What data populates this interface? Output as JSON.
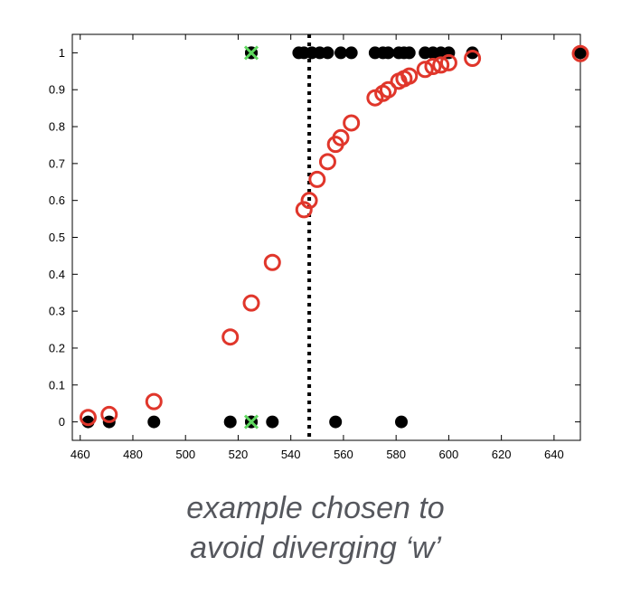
{
  "chart_data": {
    "type": "scatter",
    "xlim": [
      457,
      650
    ],
    "ylim": [
      -0.05,
      1.05
    ],
    "x_ticks": [
      460,
      480,
      500,
      520,
      540,
      560,
      580,
      600,
      620,
      640
    ],
    "y_ticks": [
      0,
      0.1,
      0.2,
      0.3,
      0.4,
      0.5,
      0.6,
      0.7,
      0.8,
      0.9,
      1
    ],
    "grid": false,
    "legend": "none",
    "threshold_x": 547,
    "series": [
      {
        "marker": "filled-circle",
        "color": "#000000",
        "points": [
          [
            463,
            0
          ],
          [
            471,
            0
          ],
          [
            488,
            0
          ],
          [
            517,
            0
          ],
          [
            525,
            0
          ],
          [
            533,
            0
          ],
          [
            557,
            0
          ],
          [
            582,
            0
          ],
          [
            525,
            1
          ],
          [
            543,
            1
          ],
          [
            545,
            1
          ],
          [
            548,
            1
          ],
          [
            551,
            1
          ],
          [
            554,
            1
          ],
          [
            559,
            1
          ],
          [
            563,
            1
          ],
          [
            572,
            1
          ],
          [
            575,
            1
          ],
          [
            577,
            1
          ],
          [
            581,
            1
          ],
          [
            583,
            1
          ],
          [
            585,
            1
          ],
          [
            591,
            1
          ],
          [
            594,
            1
          ],
          [
            597,
            1
          ],
          [
            600,
            1
          ],
          [
            609,
            1
          ],
          [
            650,
            1
          ]
        ]
      },
      {
        "marker": "open-circle",
        "color": "#e0362b",
        "points": [
          [
            463,
            0.012
          ],
          [
            471,
            0.02
          ],
          [
            488,
            0.055
          ],
          [
            517,
            0.23
          ],
          [
            525,
            0.322
          ],
          [
            533,
            0.432
          ],
          [
            545,
            0.575
          ],
          [
            547,
            0.6
          ],
          [
            550,
            0.657
          ],
          [
            554,
            0.705
          ],
          [
            557,
            0.752
          ],
          [
            559,
            0.77
          ],
          [
            563,
            0.81
          ],
          [
            572,
            0.878
          ],
          [
            575,
            0.89
          ],
          [
            577,
            0.9
          ],
          [
            581,
            0.923
          ],
          [
            583,
            0.93
          ],
          [
            585,
            0.937
          ],
          [
            591,
            0.955
          ],
          [
            594,
            0.963
          ],
          [
            597,
            0.967
          ],
          [
            600,
            0.973
          ],
          [
            609,
            0.985
          ],
          [
            650,
            0.998
          ]
        ]
      },
      {
        "marker": "green-x",
        "color": "#5fd85f",
        "points": [
          [
            525,
            0
          ],
          [
            525,
            1
          ]
        ]
      }
    ]
  },
  "caption": {
    "line1": "example chosen to",
    "line2": "avoid diverging ‘w’"
  }
}
